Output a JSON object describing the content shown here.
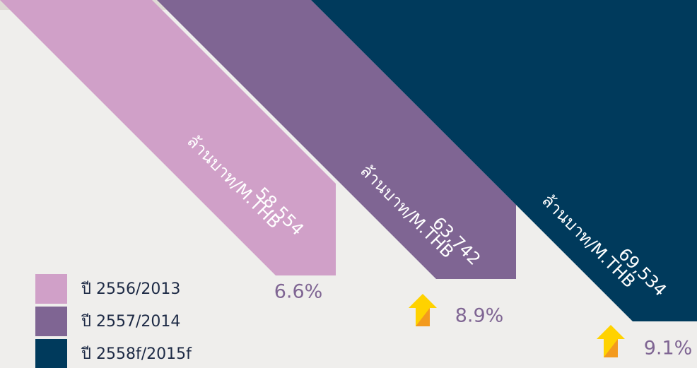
{
  "chart_data": {
    "type": "bar",
    "categories": [
      "ปี 2556/2013",
      "ปี 2557/2014",
      "ปี 2558f/2015f"
    ],
    "values": [
      58554,
      63742,
      69534
    ],
    "value_labels": [
      "58,554",
      "63,742",
      "69,534"
    ],
    "unit": "ล้านบาท/M.THB",
    "colors": [
      "#d0a0c8",
      "#7f6593",
      "#003a5c"
    ],
    "growth": {
      "values": [
        6.6,
        8.9,
        9.1
      ],
      "value_labels": [
        "6.6%",
        "8.9%",
        "9.1%"
      ],
      "color": "#7f6593",
      "arrow": [
        false,
        true,
        true
      ]
    }
  }
}
